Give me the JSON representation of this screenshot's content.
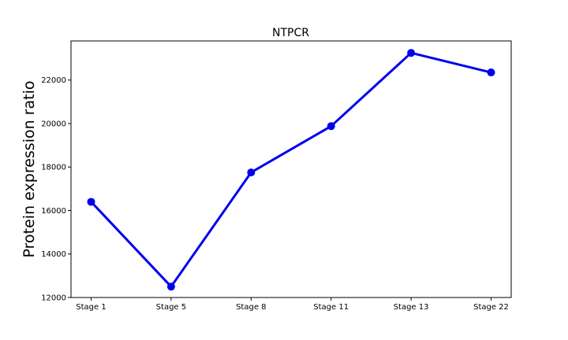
{
  "chart_data": {
    "type": "line",
    "title": "NTPCR",
    "xlabel": "",
    "ylabel": "Protein expression ratio",
    "categories": [
      "Stage 1",
      "Stage 5",
      "Stage 8",
      "Stage 11",
      "Stage 13",
      "Stage 22"
    ],
    "series": [
      {
        "values": [
          16400,
          12500,
          17750,
          19880,
          23250,
          22350
        ],
        "color": "#0000ee"
      }
    ],
    "yticks": [
      12000,
      14000,
      16000,
      18000,
      20000,
      22000
    ],
    "ylim": [
      12000,
      23800
    ],
    "grid": false,
    "legend": "none"
  }
}
